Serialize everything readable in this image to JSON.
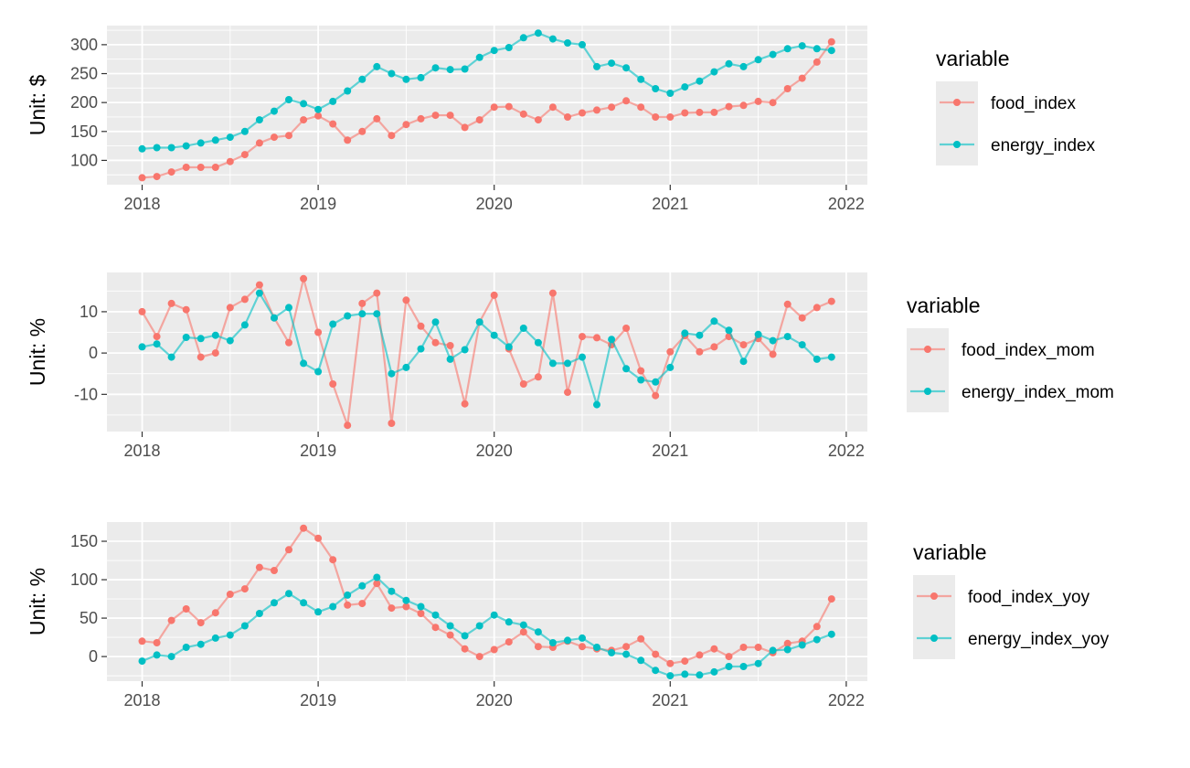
{
  "chart_data": [
    {
      "type": "line",
      "ylabel": "Unit: $",
      "x_ticks": [
        "2018",
        "2019",
        "2020",
        "2021",
        "2022"
      ],
      "y_ticks": [
        "100",
        "150",
        "200",
        "250",
        "300"
      ],
      "xlim": [
        2017.8,
        2022.12
      ],
      "ylim": [
        58,
        333
      ],
      "x_start": 2018.0,
      "x_step_months": 1,
      "grid": true,
      "legend_position": "right",
      "legend_title": "variable",
      "series": [
        {
          "name": "food_index",
          "color": "#F8766D",
          "values": [
            70,
            72,
            80,
            88,
            88,
            88,
            98,
            110,
            130,
            140,
            143,
            170,
            177,
            163,
            135,
            150,
            172,
            143,
            162,
            172,
            178,
            178,
            157,
            170,
            192,
            193,
            180,
            170,
            192,
            175,
            182,
            187,
            192,
            203,
            192,
            175,
            175,
            182,
            183,
            183,
            193,
            195,
            202,
            200,
            224,
            242,
            270,
            305
          ]
        },
        {
          "name": "energy_index",
          "color": "#00BFC4",
          "values": [
            120,
            122,
            122,
            125,
            130,
            135,
            140,
            150,
            170,
            185,
            205,
            198,
            188,
            202,
            220,
            240,
            262,
            250,
            240,
            243,
            260,
            257,
            258,
            278,
            290,
            295,
            312,
            320,
            310,
            303,
            300,
            262,
            268,
            260,
            240,
            224,
            216,
            227,
            237,
            253,
            267,
            262,
            274,
            283,
            293,
            298,
            293,
            290
          ]
        }
      ]
    },
    {
      "type": "line",
      "ylabel": "Unit: %",
      "x_ticks": [
        "2018",
        "2019",
        "2020",
        "2021",
        "2022"
      ],
      "y_ticks": [
        "-10",
        "0",
        "10"
      ],
      "xlim": [
        2017.8,
        2022.12
      ],
      "ylim": [
        -19,
        19.5
      ],
      "x_start": 2018.0,
      "x_step_months": 1,
      "grid": true,
      "legend_position": "right",
      "legend_title": "variable",
      "series": [
        {
          "name": "food_index_mom",
          "color": "#F8766D",
          "values": [
            10,
            4,
            12,
            10.5,
            -1,
            0,
            11,
            13,
            16.5,
            8.5,
            2.5,
            18,
            5,
            -7.5,
            -17.5,
            12,
            14.5,
            -17,
            12.8,
            6.5,
            2.5,
            1.8,
            -12.3,
            7.5,
            14,
            1,
            -7.5,
            -5.8,
            14.5,
            -9.5,
            4,
            3.7,
            2,
            6,
            -4.3,
            -10.3,
            0.3,
            4.2,
            0.3,
            1.5,
            4,
            2,
            3.5,
            -0.3,
            11.8,
            8.5,
            11,
            12.5
          ]
        },
        {
          "name": "energy_index_mom",
          "color": "#00BFC4",
          "values": [
            1.5,
            2.2,
            -1,
            3.8,
            3.5,
            4.3,
            3,
            6.8,
            14.5,
            8.5,
            11,
            -2.5,
            -4.5,
            7,
            9,
            9.5,
            9.5,
            -5,
            -3.5,
            1,
            7.5,
            -1.5,
            0.8,
            7.5,
            4.3,
            1.5,
            6,
            2.5,
            -2.5,
            -2.5,
            -1,
            -12.5,
            3.3,
            -3.8,
            -6.5,
            -7,
            -3.5,
            4.8,
            4.3,
            7.7,
            5.5,
            -2,
            4.5,
            3,
            4,
            2,
            -1.5,
            -1
          ]
        }
      ]
    },
    {
      "type": "line",
      "ylabel": "Unit: %",
      "x_ticks": [
        "2018",
        "2019",
        "2020",
        "2021",
        "2022"
      ],
      "y_ticks": [
        "0",
        "50",
        "100",
        "150"
      ],
      "xlim": [
        2017.8,
        2022.12
      ],
      "ylim": [
        -32,
        175
      ],
      "x_start": 2018.0,
      "x_step_months": 1,
      "grid": true,
      "legend_position": "right",
      "legend_title": "variable",
      "series": [
        {
          "name": "food_index_yoy",
          "color": "#F8766D",
          "values": [
            20,
            18,
            47,
            62,
            44,
            57,
            81,
            88,
            116,
            112,
            139,
            167,
            154,
            126,
            67,
            69,
            95,
            63,
            65,
            56,
            38,
            28,
            10,
            0,
            9,
            19,
            32,
            13,
            12,
            20,
            13,
            10,
            8,
            13,
            23,
            3,
            -9,
            -6,
            2,
            10,
            0,
            12,
            12,
            5,
            17,
            20,
            39,
            75
          ]
        },
        {
          "name": "energy_index_yoy",
          "color": "#00BFC4",
          "values": [
            -6,
            2,
            0,
            12,
            16,
            24,
            28,
            40,
            56,
            70,
            82,
            70,
            58,
            65,
            80,
            92,
            103,
            85,
            73,
            65,
            54,
            40,
            27,
            40,
            54,
            45,
            41,
            32,
            18,
            21,
            24,
            12,
            5,
            3,
            -5,
            -18,
            -25,
            -23,
            -24,
            -20,
            -13,
            -13,
            -9,
            8,
            9,
            15,
            22,
            29
          ]
        }
      ]
    }
  ]
}
